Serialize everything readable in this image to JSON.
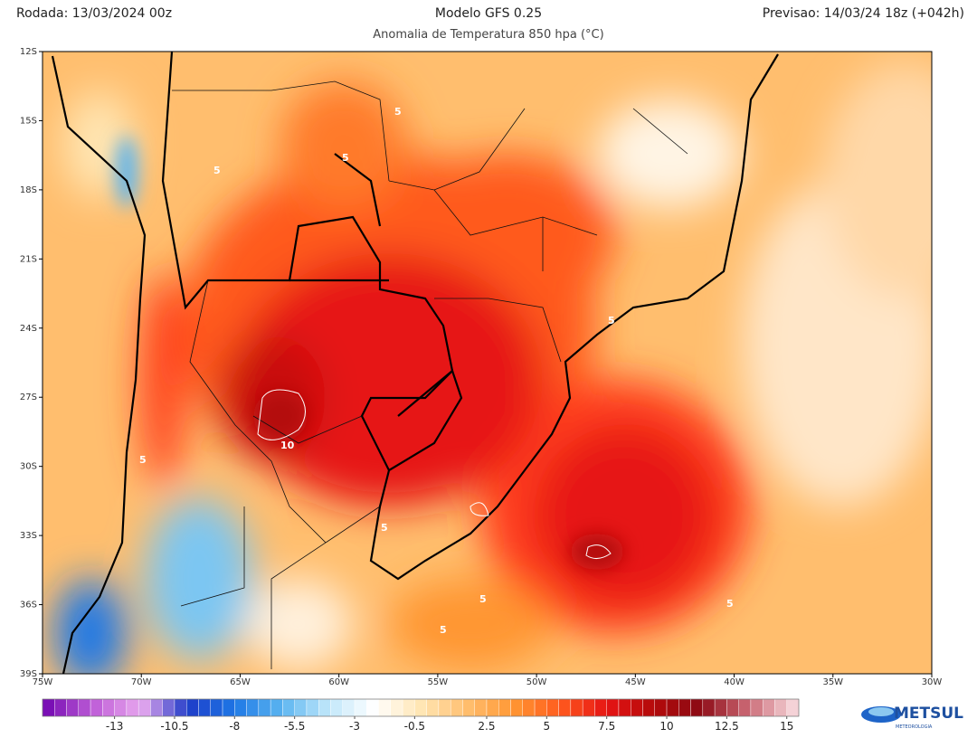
{
  "header": {
    "run": "Rodada: 13/03/2024 00z",
    "model": "Modelo GFS 0.25",
    "forecast": "Previsao: 14/03/24 18z (+042h)",
    "subtitle": "Anomalia de Temperatura 850 hpa (°C)"
  },
  "map": {
    "lat_labels": [
      "12S",
      "15S",
      "18S",
      "21S",
      "24S",
      "27S",
      "30S",
      "33S",
      "36S",
      "39S"
    ],
    "lon_labels": [
      "75W",
      "70W",
      "65W",
      "60W",
      "55W",
      "50W",
      "45W",
      "40W",
      "35W",
      "30W"
    ],
    "contour_labels": [
      "5",
      "5",
      "5",
      "5",
      "5",
      "10",
      "5",
      "5",
      "5",
      "5"
    ]
  },
  "colorbar": {
    "lim": [
      -16,
      15.5
    ],
    "ticks": [
      -13,
      -10.5,
      -8,
      -5.5,
      -3,
      -0.5,
      2.5,
      5,
      7.5,
      10,
      12.5,
      15
    ],
    "colors": [
      "#7a0fb5",
      "#c060d8",
      "#e8a8ee",
      "#1e3cc8",
      "#1e78e6",
      "#5ab4f0",
      "#bfe6fa",
      "#ffffff",
      "#ffe6b4",
      "#ffbe6e",
      "#ff9632",
      "#ff5a1e",
      "#e61414",
      "#b40a0a",
      "#8c0a14",
      "#c86470",
      "#f5d2d7"
    ]
  },
  "logo": {
    "name": "METSUL",
    "tagline": "METEOROLOGIA"
  }
}
